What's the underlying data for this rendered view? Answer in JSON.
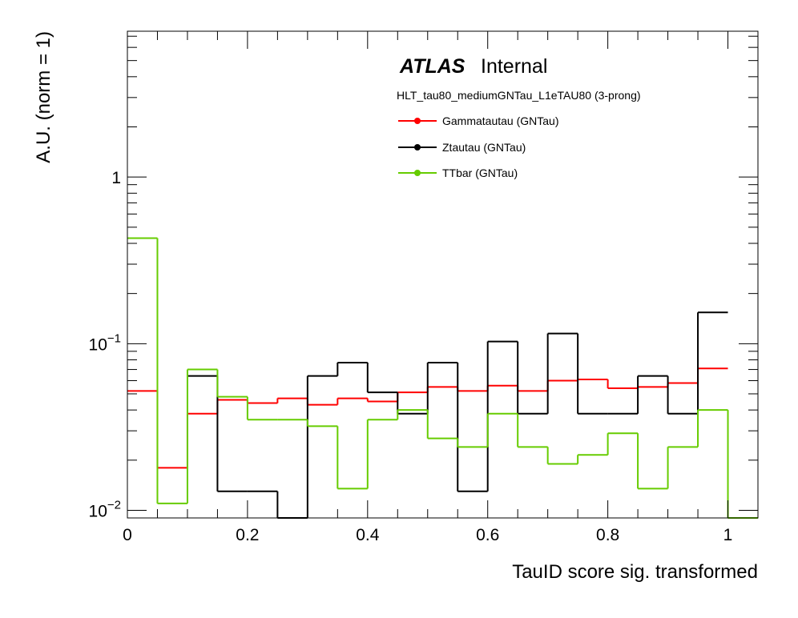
{
  "chart_data": {
    "type": "line",
    "drawstyle": "step",
    "xlabel": "TauID score sig. transformed",
    "ylabel": "A.U. (norm = 1)",
    "xlim": [
      0,
      1.05
    ],
    "ylim": [
      0.009,
      7.5
    ],
    "yscale": "log",
    "x_ticks": [
      {
        "value": 0,
        "label": "0"
      },
      {
        "value": 0.2,
        "label": "0.2"
      },
      {
        "value": 0.4,
        "label": "0.4"
      },
      {
        "value": 0.6,
        "label": "0.6"
      },
      {
        "value": 0.8,
        "label": "0.8"
      },
      {
        "value": 1,
        "label": "1"
      }
    ],
    "y_ticks": [
      {
        "value": 0.01,
        "base": "10",
        "exp": "−2"
      },
      {
        "value": 0.1,
        "base": "10",
        "exp": "−1"
      },
      {
        "value": 1,
        "base": "1",
        "exp": ""
      }
    ],
    "bin_edges": [
      0,
      0.05,
      0.1,
      0.15,
      0.2,
      0.25,
      0.3,
      0.35,
      0.4,
      0.45,
      0.5,
      0.55,
      0.6,
      0.65,
      0.7,
      0.75,
      0.8,
      0.85,
      0.9,
      0.95,
      1.0,
      1.05
    ],
    "series": [
      {
        "name": "Gammatautau (GNTau)",
        "color": "#ff0000",
        "values": [
          0.052,
          0.018,
          0.038,
          0.046,
          0.044,
          0.047,
          0.043,
          0.047,
          0.045,
          0.051,
          0.055,
          0.052,
          0.056,
          0.052,
          0.06,
          0.061,
          0.054,
          0.055,
          0.058,
          0.071,
          null
        ]
      },
      {
        "name": "Ztautau (GNTau)",
        "color": "#000000",
        "values": [
          null,
          null,
          0.064,
          0.013,
          0.013,
          0.009,
          0.064,
          0.077,
          0.051,
          0.038,
          0.077,
          0.013,
          0.103,
          0.038,
          0.115,
          0.038,
          0.038,
          0.064,
          0.038,
          0.154,
          null
        ]
      },
      {
        "name": "TTbar (GNTau)",
        "color": "#66cc00",
        "values": [
          0.43,
          0.011,
          0.07,
          0.048,
          0.035,
          0.035,
          0.032,
          0.0135,
          0.035,
          0.04,
          0.027,
          0.024,
          0.038,
          0.024,
          0.019,
          0.0215,
          0.029,
          0.0135,
          0.024,
          0.04,
          0.009
        ]
      }
    ]
  },
  "atlas_label": {
    "bold": "ATLAS",
    "regular": "Internal"
  },
  "subtitle": "HLT_tau80_mediumGNTau_L1eTAU80 (3-prong)",
  "legend": [
    {
      "label": "Gammatautau (GNTau)",
      "color": "#ff0000"
    },
    {
      "label": "Ztautau (GNTau)",
      "color": "#000000"
    },
    {
      "label": "TTbar (GNTau)",
      "color": "#66cc00"
    }
  ]
}
